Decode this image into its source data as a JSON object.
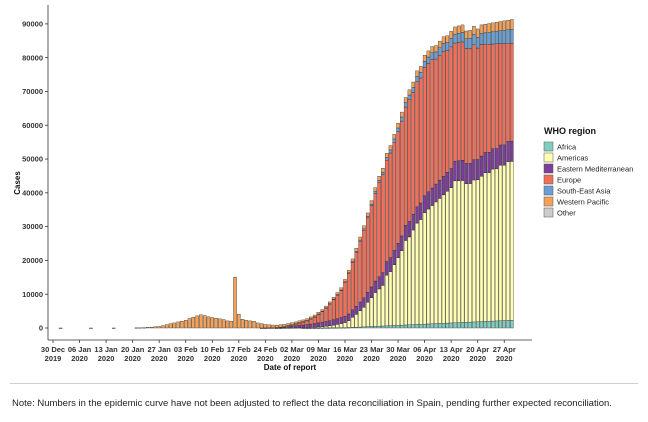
{
  "chart_data": {
    "type": "bar",
    "stacked": true,
    "xlabel": "Date of report",
    "ylabel": "Cases",
    "ylim": [
      0,
      95000
    ],
    "y_ticks": [
      0,
      10000,
      20000,
      30000,
      40000,
      50000,
      60000,
      70000,
      80000,
      90000
    ],
    "x_ticks": [
      {
        "label": [
          "30 Dec",
          "2019"
        ],
        "day": 0
      },
      {
        "label": [
          "06 Jan",
          "2020"
        ],
        "day": 7
      },
      {
        "label": [
          "13 Jan",
          "2020"
        ],
        "day": 14
      },
      {
        "label": [
          "20 Jan",
          "2020"
        ],
        "day": 21
      },
      {
        "label": [
          "27 Jan",
          "2020"
        ],
        "day": 28
      },
      {
        "label": [
          "03 Feb",
          "2020"
        ],
        "day": 35
      },
      {
        "label": [
          "10 Feb",
          "2020"
        ],
        "day": 42
      },
      {
        "label": [
          "17 Feb",
          "2020"
        ],
        "day": 49
      },
      {
        "label": [
          "24 Feb",
          "2020"
        ],
        "day": 56
      },
      {
        "label": [
          "02 Mar",
          "2020"
        ],
        "day": 63
      },
      {
        "label": [
          "09 Mar",
          "2020"
        ],
        "day": 70
      },
      {
        "label": [
          "16 Mar",
          "2020"
        ],
        "day": 77
      },
      {
        "label": [
          "23 Mar",
          "2020"
        ],
        "day": 84
      },
      {
        "label": [
          "30 Mar",
          "2020"
        ],
        "day": 91
      },
      {
        "label": [
          "06 Apr",
          "2020"
        ],
        "day": 98
      },
      {
        "label": [
          "13 Apr",
          "2020"
        ],
        "day": 105
      },
      {
        "label": [
          "20 Apr",
          "2020"
        ],
        "day": 112
      },
      {
        "label": [
          "27 Apr",
          "2020"
        ],
        "day": 119
      }
    ],
    "start_day": 0,
    "series": [
      {
        "name": "Africa",
        "color": "#7fcfc1",
        "values": [
          0,
          0,
          0,
          0,
          0,
          0,
          0,
          0,
          0,
          0,
          0,
          0,
          0,
          0,
          0,
          0,
          0,
          0,
          0,
          0,
          0,
          0,
          0,
          0,
          0,
          0,
          0,
          0,
          0,
          0,
          0,
          0,
          0,
          0,
          0,
          0,
          0,
          0,
          0,
          0,
          0,
          0,
          0,
          0,
          0,
          0,
          0,
          0,
          0,
          0,
          0,
          0,
          0,
          0,
          0,
          0,
          0,
          0,
          0,
          0,
          0,
          0,
          0,
          0,
          0,
          0,
          5,
          5,
          10,
          10,
          15,
          20,
          30,
          40,
          50,
          70,
          90,
          110,
          150,
          180,
          230,
          280,
          330,
          400,
          450,
          500,
          550,
          600,
          650,
          700,
          750,
          800,
          850,
          900,
          950,
          1000,
          1050,
          1100,
          1150,
          1200,
          1250,
          1300,
          1350,
          1400,
          1450,
          1500,
          1550,
          1600,
          1650,
          1700,
          1750,
          1800,
          1850,
          1900,
          1950,
          2000,
          2050,
          2100,
          2150,
          2200,
          2250,
          2300
        ]
      },
      {
        "name": "Americas",
        "color": "#ffffb3",
        "values": [
          0,
          0,
          0,
          0,
          0,
          0,
          0,
          0,
          0,
          0,
          0,
          0,
          0,
          0,
          0,
          0,
          0,
          0,
          0,
          0,
          0,
          0,
          0,
          0,
          0,
          0,
          0,
          0,
          0,
          0,
          0,
          0,
          0,
          0,
          0,
          0,
          0,
          0,
          0,
          0,
          0,
          0,
          0,
          0,
          0,
          0,
          0,
          0,
          0,
          0,
          0,
          0,
          0,
          0,
          0,
          0,
          0,
          0,
          0,
          10,
          10,
          15,
          20,
          30,
          40,
          60,
          80,
          120,
          150,
          200,
          300,
          400,
          500,
          600,
          800,
          1000,
          1200,
          1500,
          2000,
          3000,
          3800,
          4800,
          5800,
          7200,
          8500,
          10000,
          11000,
          12000,
          15000,
          16000,
          18000,
          20000,
          22000,
          25000,
          26000,
          28000,
          30000,
          31000,
          33000,
          34000,
          35000,
          36000,
          37000,
          38000,
          39000,
          40000,
          42000,
          42000,
          42000,
          41000,
          41000,
          42000,
          42000,
          43000,
          44000,
          44000,
          45000,
          45000,
          46000,
          46000,
          47000,
          47000
        ]
      },
      {
        "name": "Eastern Mediterranean",
        "color": "#7b3f98",
        "values": [
          0,
          0,
          0,
          0,
          0,
          0,
          0,
          0,
          0,
          0,
          0,
          0,
          0,
          0,
          0,
          0,
          0,
          0,
          0,
          0,
          0,
          0,
          0,
          0,
          0,
          0,
          0,
          0,
          0,
          0,
          0,
          0,
          0,
          0,
          0,
          0,
          0,
          0,
          0,
          0,
          0,
          0,
          0,
          0,
          0,
          0,
          0,
          0,
          0,
          0,
          0,
          0,
          0,
          0,
          0,
          0,
          20,
          30,
          40,
          60,
          100,
          200,
          400,
          500,
          600,
          700,
          800,
          900,
          1000,
          1100,
          1200,
          1300,
          1400,
          1500,
          1600,
          1700,
          1800,
          1900,
          2000,
          2200,
          2400,
          2600,
          2800,
          3000,
          3200,
          3400,
          3600,
          3800,
          4000,
          4100,
          4200,
          4300,
          4400,
          4500,
          4600,
          4700,
          4800,
          4900,
          5000,
          5100,
          5200,
          5300,
          5400,
          5500,
          5600,
          5700,
          5800,
          5900,
          6000,
          6000,
          6000,
          6000,
          6000,
          6000,
          6000,
          6000,
          6000,
          6000,
          6000,
          6000,
          6000,
          6000
        ]
      },
      {
        "name": "Europe",
        "color": "#ef6f5a",
        "values": [
          0,
          0,
          0,
          0,
          0,
          0,
          0,
          0,
          0,
          0,
          0,
          0,
          0,
          0,
          0,
          0,
          0,
          0,
          0,
          0,
          0,
          0,
          0,
          0,
          0,
          0,
          0,
          0,
          0,
          0,
          0,
          0,
          0,
          0,
          0,
          0,
          0,
          0,
          0,
          0,
          0,
          0,
          0,
          0,
          0,
          0,
          0,
          0,
          0,
          0,
          0,
          0,
          0,
          0,
          0,
          5,
          10,
          20,
          40,
          80,
          150,
          200,
          300,
          400,
          600,
          800,
          1000,
          1200,
          1600,
          2000,
          2600,
          3200,
          4000,
          5000,
          6000,
          7000,
          8000,
          10000,
          12000,
          14000,
          16000,
          18000,
          20000,
          22000,
          24000,
          26000,
          28000,
          29000,
          30000,
          31000,
          32000,
          33000,
          34000,
          35000,
          36000,
          36000,
          37000,
          37000,
          38000,
          38000,
          38000,
          37000,
          37000,
          37000,
          36000,
          36000,
          35000,
          35000,
          35000,
          34000,
          34000,
          34000,
          33000,
          33000,
          32000,
          32000,
          31000,
          31000,
          30000,
          30000,
          29000,
          29000
        ]
      },
      {
        "name": "South-East Asia",
        "color": "#6a9fd4",
        "values": [
          0,
          0,
          0,
          0,
          0,
          0,
          0,
          0,
          0,
          0,
          0,
          0,
          0,
          0,
          0,
          0,
          0,
          0,
          0,
          0,
          0,
          0,
          0,
          0,
          0,
          0,
          0,
          0,
          0,
          0,
          0,
          0,
          0,
          0,
          0,
          0,
          0,
          0,
          0,
          0,
          0,
          0,
          0,
          0,
          0,
          0,
          0,
          0,
          0,
          0,
          0,
          0,
          0,
          0,
          0,
          0,
          0,
          0,
          0,
          0,
          0,
          0,
          0,
          5,
          5,
          10,
          10,
          20,
          20,
          30,
          40,
          50,
          60,
          80,
          100,
          120,
          150,
          180,
          220,
          260,
          300,
          350,
          400,
          450,
          500,
          550,
          600,
          700,
          800,
          900,
          1000,
          1100,
          1200,
          1300,
          1400,
          1500,
          1600,
          1700,
          1800,
          1900,
          2000,
          2100,
          2200,
          2300,
          2400,
          2500,
          2600,
          2700,
          2800,
          2900,
          3000,
          3100,
          3200,
          3300,
          3400,
          3500,
          3600,
          3700,
          3800,
          3900,
          4000,
          4100
        ]
      },
      {
        "name": "Western Pacific",
        "color": "#f4a259",
        "values": [
          0,
          0,
          10,
          0,
          0,
          0,
          0,
          0,
          0,
          0,
          10,
          0,
          0,
          0,
          0,
          0,
          10,
          0,
          0,
          0,
          0,
          0,
          60,
          100,
          130,
          200,
          250,
          350,
          450,
          700,
          1000,
          1300,
          1500,
          1800,
          2000,
          2300,
          2800,
          3200,
          3600,
          3900,
          3700,
          3300,
          3100,
          2900,
          2700,
          2500,
          2100,
          2000,
          15000,
          4100,
          2600,
          2300,
          2100,
          2000,
          1500,
          1300,
          1000,
          900,
          800,
          700,
          700,
          650,
          600,
          600,
          550,
          550,
          500,
          500,
          500,
          500,
          500,
          500,
          500,
          500,
          550,
          600,
          650,
          700,
          750,
          800,
          850,
          900,
          950,
          1000,
          1050,
          1100,
          1150,
          1200,
          1250,
          1300,
          1350,
          1400,
          1450,
          1500,
          1550,
          1600,
          1650,
          1700,
          1750,
          1800,
          1850,
          1900,
          1950,
          2000,
          2050,
          2100,
          2150,
          2200,
          2250,
          2300,
          2350,
          2400,
          2450,
          2500,
          2550,
          2600,
          2650,
          2700,
          2750,
          2800,
          2850,
          2900
        ]
      },
      {
        "name": "Other",
        "color": "#cccccc",
        "values": [
          0
        ]
      }
    ],
    "legend": {
      "title": "WHO region",
      "position": "right"
    }
  },
  "note": "Note:  Numbers in the epidemic curve have not been adjusted to reflect the data reconciliation in Spain, pending further expected reconciliation."
}
